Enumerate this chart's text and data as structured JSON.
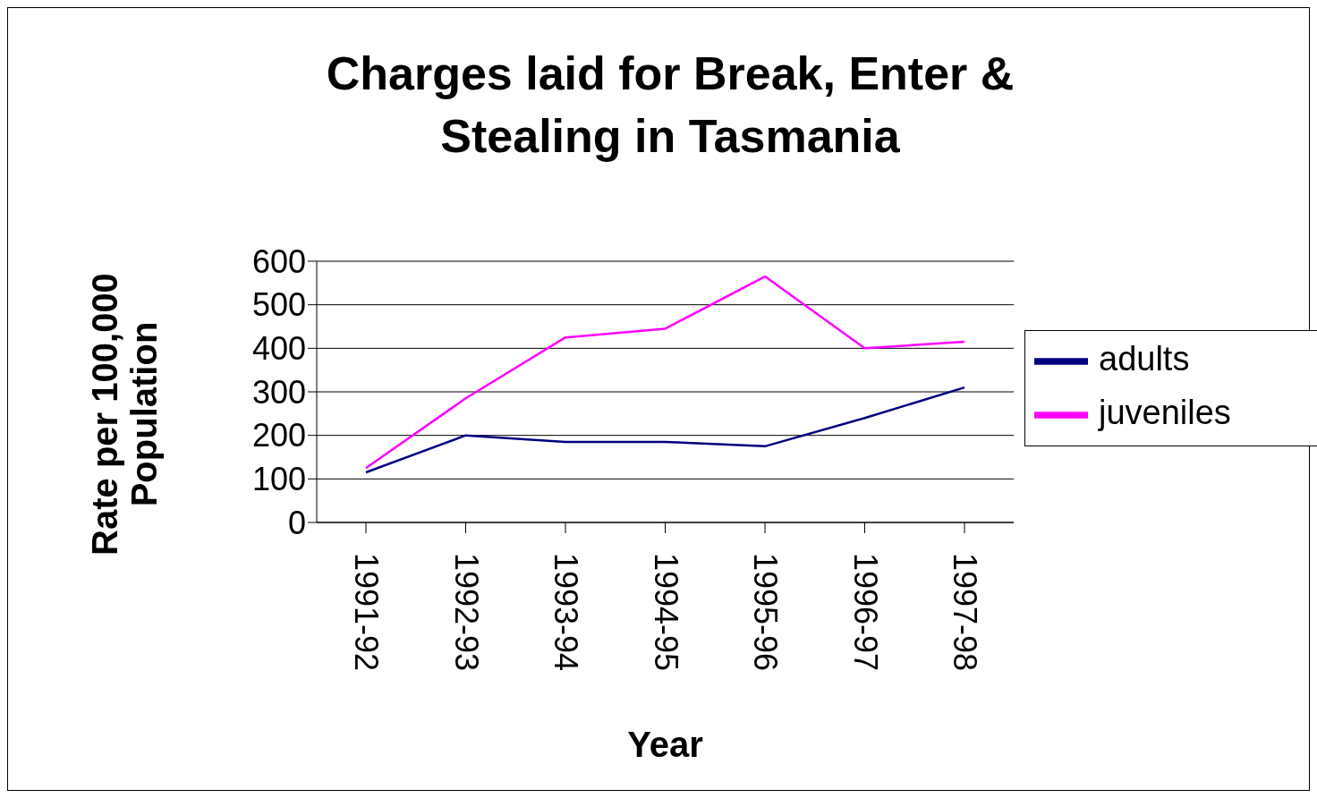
{
  "chart_data": {
    "type": "line",
    "title": "Charges laid for Break, Enter & Stealing in Tasmania",
    "xlabel": "Year",
    "ylabel": "Rate per 100,000 Population",
    "categories": [
      "1991-92",
      "1992-93",
      "1993-94",
      "1994-95",
      "1995-96",
      "1996-97",
      "1997-98"
    ],
    "series": [
      {
        "name": "adults",
        "color": "#000080",
        "values": [
          115,
          200,
          185,
          185,
          175,
          240,
          310
        ]
      },
      {
        "name": "juveniles",
        "color": "#ff00ff",
        "values": [
          125,
          285,
          425,
          445,
          565,
          400,
          415
        ]
      }
    ],
    "ylim": [
      0,
      600
    ],
    "yticks": [
      0,
      100,
      200,
      300,
      400,
      500,
      600
    ],
    "grid": "y",
    "legend": "right",
    "marker": "none",
    "line_style": "solid"
  }
}
